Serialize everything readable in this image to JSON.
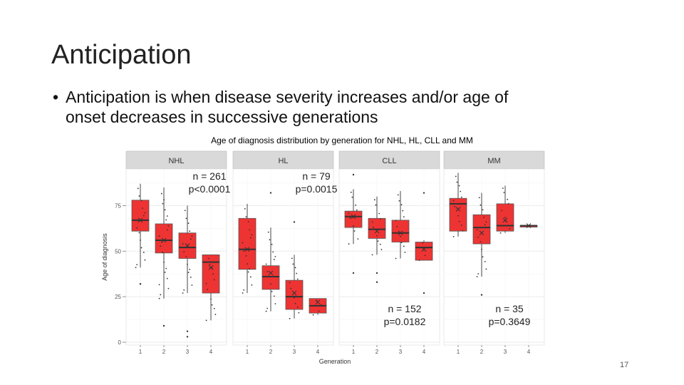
{
  "slide": {
    "title": "Anticipation",
    "bullet_line1": "Anticipation is when disease severity increases and/or age of",
    "bullet_line2": "onset decreases in successive generations",
    "bullet_symbol": "•",
    "page_number": "17"
  },
  "colors": {
    "box_fill": "#ee3333",
    "box_stroke": "#555555",
    "panel_bg": "#ffffff",
    "strip_bg": "#d9d9d9",
    "grid": "#ebebeb"
  },
  "chart_data": {
    "type": "boxplot",
    "title": "Age of diagnosis distribution by generation for NHL, HL, CLL and MM",
    "xlabel": "Generation",
    "ylabel": "Age of diagnosis",
    "ylim": [
      0,
      92
    ],
    "yticks": [
      0,
      25,
      50,
      75
    ],
    "categories": [
      "1",
      "2",
      "3",
      "4"
    ],
    "facets": [
      {
        "name": "NHL",
        "n_text": "n = 261",
        "p_text": "p<0.0001",
        "annot_pos": "top-right",
        "boxes": [
          {
            "gen": "1",
            "whisker_low": 41,
            "q1": 61,
            "median": 67,
            "q3": 78,
            "whisker_high": 87,
            "mean": 67
          },
          {
            "gen": "2",
            "whisker_low": 24,
            "q1": 49,
            "median": 56,
            "q3": 65,
            "whisker_high": 85,
            "mean": 56
          },
          {
            "gen": "3",
            "whisker_low": 27,
            "q1": 46,
            "median": 52,
            "q3": 60,
            "whisker_high": 75,
            "mean": 53
          },
          {
            "gen": "4",
            "whisker_low": 12,
            "q1": 27,
            "median": 44,
            "q3": 48,
            "whisker_high": 48,
            "mean": 41
          }
        ],
        "outliers": [
          {
            "gen": "1",
            "value": 32
          },
          {
            "gen": "2",
            "value": 9
          },
          {
            "gen": "3",
            "value": 6
          },
          {
            "gen": "3",
            "value": 3
          }
        ]
      },
      {
        "name": "HL",
        "n_text": "n = 79",
        "p_text": "p=0.0015",
        "annot_pos": "top-right",
        "boxes": [
          {
            "gen": "1",
            "whisker_low": 27,
            "q1": 40,
            "median": 51,
            "q3": 68,
            "whisker_high": 76,
            "mean": 51
          },
          {
            "gen": "2",
            "whisker_low": 17,
            "q1": 29,
            "median": 36,
            "q3": 42,
            "whisker_high": 63,
            "mean": 38
          },
          {
            "gen": "3",
            "whisker_low": 13,
            "q1": 18,
            "median": 25,
            "q3": 34,
            "whisker_high": 48,
            "mean": 27
          },
          {
            "gen": "4",
            "whisker_low": 15,
            "q1": 16,
            "median": 20,
            "q3": 24,
            "whisker_high": 24,
            "mean": 22
          }
        ],
        "outliers": [
          {
            "gen": "2",
            "value": 82
          },
          {
            "gen": "3",
            "value": 66
          }
        ]
      },
      {
        "name": "CLL",
        "n_text": "n = 152",
        "p_text": "p=0.0182",
        "annot_pos": "bottom-right",
        "boxes": [
          {
            "gen": "1",
            "whisker_low": 54,
            "q1": 63,
            "median": 69,
            "q3": 72,
            "whisker_high": 84,
            "mean": 69
          },
          {
            "gen": "2",
            "whisker_low": 48,
            "q1": 57,
            "median": 62,
            "q3": 68,
            "whisker_high": 80,
            "mean": 61
          },
          {
            "gen": "3",
            "whisker_low": 46,
            "q1": 55,
            "median": 60,
            "q3": 67,
            "whisker_high": 83,
            "mean": 60
          },
          {
            "gen": "4",
            "whisker_low": 45,
            "q1": 45,
            "median": 52,
            "q3": 55,
            "whisker_high": 56,
            "mean": 51
          }
        ],
        "outliers": [
          {
            "gen": "1",
            "value": 92
          },
          {
            "gen": "1",
            "value": 38
          },
          {
            "gen": "2",
            "value": 38
          },
          {
            "gen": "2",
            "value": 33
          },
          {
            "gen": "4",
            "value": 82
          },
          {
            "gen": "4",
            "value": 27
          }
        ]
      },
      {
        "name": "MM",
        "n_text": "n = 35",
        "p_text": "p=0.3649",
        "annot_pos": "bottom-right",
        "boxes": [
          {
            "gen": "1",
            "whisker_low": 58,
            "q1": 61,
            "median": 76,
            "q3": 79,
            "whisker_high": 93,
            "mean": 73
          },
          {
            "gen": "2",
            "whisker_low": 36,
            "q1": 54,
            "median": 63,
            "q3": 70,
            "whisker_high": 82,
            "mean": 60
          },
          {
            "gen": "3",
            "whisker_low": 60,
            "q1": 61,
            "median": 64,
            "q3": 76,
            "whisker_high": 86,
            "mean": 67
          },
          {
            "gen": "4",
            "whisker_low": 64,
            "q1": 64,
            "median": 64,
            "q3": 64,
            "whisker_high": 64,
            "mean": 64
          }
        ],
        "outliers": [
          {
            "gen": "2",
            "value": 26
          }
        ]
      }
    ]
  }
}
